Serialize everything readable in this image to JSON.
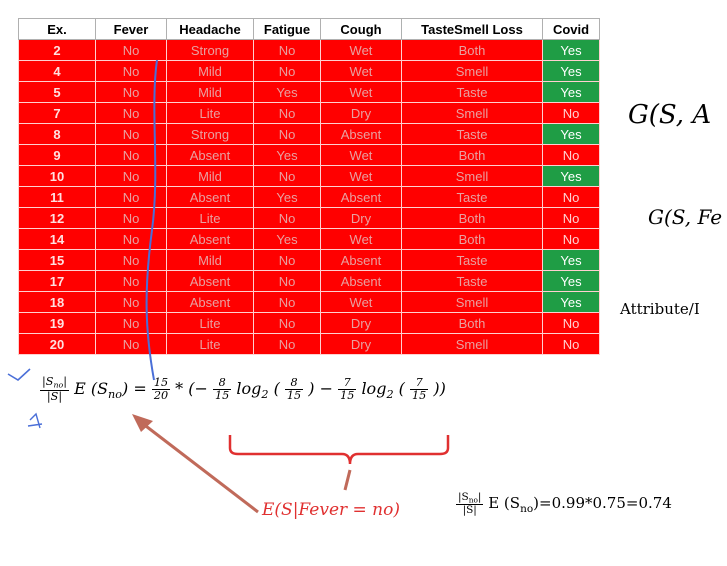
{
  "table": {
    "headers": [
      "Ex.",
      "Fever",
      "Headache",
      "Fatigue",
      "Cough",
      "TasteSmell Loss",
      "Covid"
    ],
    "rows": [
      [
        "2",
        "No",
        "Strong",
        "No",
        "Wet",
        "Both",
        "Yes"
      ],
      [
        "4",
        "No",
        "Mild",
        "No",
        "Wet",
        "Smell",
        "Yes"
      ],
      [
        "5",
        "No",
        "Mild",
        "Yes",
        "Wet",
        "Taste",
        "Yes"
      ],
      [
        "7",
        "No",
        "Lite",
        "No",
        "Dry",
        "Smell",
        "No"
      ],
      [
        "8",
        "No",
        "Strong",
        "No",
        "Absent",
        "Taste",
        "Yes"
      ],
      [
        "9",
        "No",
        "Absent",
        "Yes",
        "Wet",
        "Both",
        "No"
      ],
      [
        "10",
        "No",
        "Mild",
        "No",
        "Wet",
        "Smell",
        "Yes"
      ],
      [
        "11",
        "No",
        "Absent",
        "Yes",
        "Absent",
        "Taste",
        "No"
      ],
      [
        "12",
        "No",
        "Lite",
        "No",
        "Dry",
        "Both",
        "No"
      ],
      [
        "14",
        "No",
        "Absent",
        "Yes",
        "Wet",
        "Both",
        "No"
      ],
      [
        "15",
        "No",
        "Mild",
        "No",
        "Absent",
        "Taste",
        "Yes"
      ],
      [
        "17",
        "No",
        "Absent",
        "No",
        "Absent",
        "Taste",
        "Yes"
      ],
      [
        "18",
        "No",
        "Absent",
        "No",
        "Wet",
        "Smell",
        "Yes"
      ],
      [
        "19",
        "No",
        "Lite",
        "No",
        "Dry",
        "Both",
        "No"
      ],
      [
        "20",
        "No",
        "Lite",
        "No",
        "Dry",
        "Smell",
        "No"
      ]
    ]
  },
  "colors": {
    "cell_red": "#ff0000",
    "covid_yes_green": "#1f9d45",
    "annotation_red": "#e03030",
    "annotation_blue": "#4a6fd8"
  },
  "right_text": {
    "gain_general": "G(S, A",
    "gain_fever": "G(S, Fe",
    "attribute_label": "Attribute/I"
  },
  "equation": {
    "lhs_num": "|S",
    "lhs_num_sub": "no",
    "lhs_num_end": "|",
    "lhs_den": "|S|",
    "lhs_e": "E (S",
    "lhs_e_sub": "no",
    "lhs_e_end": ") =",
    "f1_num": "15",
    "f1_den": "20",
    "mult_open": "* (−",
    "f2_num": "8",
    "f2_den": "15",
    "log_a": "log",
    "log_a_sub": "2",
    "paren_a_open": "(",
    "f3_num": "8",
    "f3_den": "15",
    "paren_a_close": ")",
    "minus": "−",
    "f4_num": "7",
    "f4_den": "15",
    "log_b": "log",
    "log_b_sub": "2",
    "paren_b_open": "(",
    "f5_num": "7",
    "f5_den": "15",
    "paren_b_close": "))"
  },
  "result_equation": {
    "num": "|S",
    "num_sub": "no",
    "num_end": "|",
    "den": "|S|",
    "e": "E (S",
    "e_sub": "no",
    "tail": ")=0.99*0.75=0.74"
  },
  "annotation_label": "E(S|Fever = no)",
  "icons": [
    "checkmark-icon",
    "handwritten-curve-icon",
    "arrow-icon",
    "brace-icon"
  ]
}
